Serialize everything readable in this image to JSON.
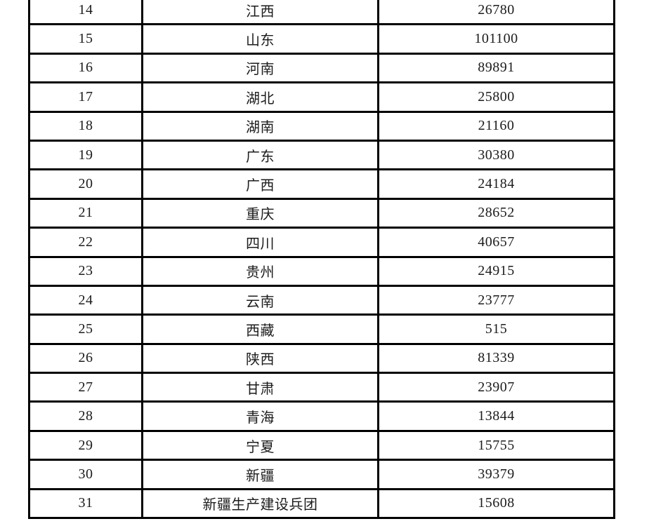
{
  "page": {
    "background_color": "#ffffff",
    "border_color": "#000000",
    "text_color": "#1c1c1c"
  },
  "table": {
    "visible_row_range": "14-31",
    "rows": [
      {
        "no": "14",
        "region": "江西",
        "value": "26780"
      },
      {
        "no": "15",
        "region": "山东",
        "value": "101100"
      },
      {
        "no": "16",
        "region": "河南",
        "value": "89891"
      },
      {
        "no": "17",
        "region": "湖北",
        "value": "25800"
      },
      {
        "no": "18",
        "region": "湖南",
        "value": "21160"
      },
      {
        "no": "19",
        "region": "广东",
        "value": "30380"
      },
      {
        "no": "20",
        "region": "广西",
        "value": "24184"
      },
      {
        "no": "21",
        "region": "重庆",
        "value": "28652"
      },
      {
        "no": "22",
        "region": "四川",
        "value": "40657"
      },
      {
        "no": "23",
        "region": "贵州",
        "value": "24915"
      },
      {
        "no": "24",
        "region": "云南",
        "value": "23777"
      },
      {
        "no": "25",
        "region": "西藏",
        "value": "515"
      },
      {
        "no": "26",
        "region": "陕西",
        "value": "81339"
      },
      {
        "no": "27",
        "region": "甘肃",
        "value": "23907"
      },
      {
        "no": "28",
        "region": "青海",
        "value": "13844"
      },
      {
        "no": "29",
        "region": "宁夏",
        "value": "15755"
      },
      {
        "no": "30",
        "region": "新疆",
        "value": "39379"
      },
      {
        "no": "31",
        "region": "新疆生产建设兵团",
        "value": "15608"
      }
    ]
  }
}
